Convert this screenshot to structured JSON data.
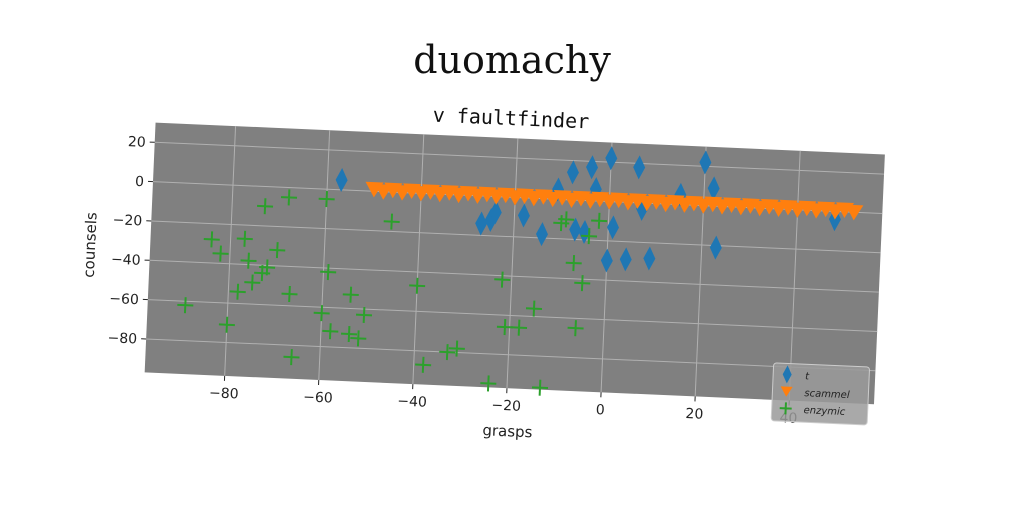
{
  "page": {
    "title": "duomachy"
  },
  "chart_data": {
    "type": "scatter",
    "title": "v faultfinder",
    "xlabel": "grasps",
    "ylabel": "counsels",
    "xlim": [
      -97,
      58
    ],
    "ylim": [
      -97,
      30
    ],
    "xticks": [
      -80,
      -60,
      -40,
      -20,
      0,
      20,
      40
    ],
    "yticks": [
      20,
      0,
      -20,
      -40,
      -60,
      -80
    ],
    "grid": true,
    "legend_position": "lower-right",
    "background_color": "#808080",
    "series": [
      {
        "name": "t",
        "color": "#1f77b4",
        "marker": "diamond",
        "points": [
          [
            -57,
            5
          ],
          [
            -27,
            -14
          ],
          [
            -25,
            -12
          ],
          [
            -24,
            -8
          ],
          [
            -18,
            -9
          ],
          [
            -14,
            -18
          ],
          [
            -11,
            5
          ],
          [
            -8,
            14
          ],
          [
            -7,
            -15
          ],
          [
            -5,
            -16
          ],
          [
            -4,
            17
          ],
          [
            -3,
            6
          ],
          [
            0,
            22
          ],
          [
            0,
            -30
          ],
          [
            1,
            -13
          ],
          [
            4,
            -29
          ],
          [
            6,
            18
          ],
          [
            7,
            -3
          ],
          [
            9,
            -28
          ],
          [
            15,
            5
          ],
          [
            20,
            22
          ],
          [
            22,
            9
          ],
          [
            23,
            -21
          ],
          [
            48,
            -4
          ]
        ]
      },
      {
        "name": "scammel",
        "color": "#ff7f0e",
        "marker": "triangle-down",
        "points": [
          [
            -50,
            1
          ],
          [
            -48,
            0
          ],
          [
            -46,
            1
          ],
          [
            -44,
            0
          ],
          [
            -42,
            1
          ],
          [
            -40,
            0
          ],
          [
            -38,
            1
          ],
          [
            -36,
            0
          ],
          [
            -34,
            1
          ],
          [
            -32,
            0
          ],
          [
            -30,
            1
          ],
          [
            -28,
            0
          ],
          [
            -26,
            1
          ],
          [
            -24,
            0
          ],
          [
            -22,
            1
          ],
          [
            -20,
            0
          ],
          [
            -18,
            1
          ],
          [
            -16,
            0
          ],
          [
            -14,
            1
          ],
          [
            -12,
            0
          ],
          [
            -10,
            1
          ],
          [
            -8,
            0
          ],
          [
            -6,
            1
          ],
          [
            -4,
            0
          ],
          [
            -2,
            1
          ],
          [
            0,
            0
          ],
          [
            2,
            1
          ],
          [
            4,
            0
          ],
          [
            6,
            1
          ],
          [
            8,
            0
          ],
          [
            10,
            1
          ],
          [
            12,
            0
          ],
          [
            14,
            1
          ],
          [
            16,
            0
          ],
          [
            18,
            1
          ],
          [
            20,
            0
          ],
          [
            22,
            1
          ],
          [
            24,
            0
          ],
          [
            26,
            1
          ],
          [
            28,
            0
          ],
          [
            30,
            1
          ],
          [
            32,
            0
          ],
          [
            34,
            1
          ],
          [
            36,
            0
          ],
          [
            38,
            1
          ],
          [
            40,
            0
          ],
          [
            42,
            1
          ],
          [
            44,
            0
          ],
          [
            46,
            1
          ],
          [
            48,
            0
          ],
          [
            50,
            1
          ],
          [
            52,
            0
          ]
        ]
      },
      {
        "name": "enzymic",
        "color": "#2ca02c",
        "marker": "plus",
        "points": [
          [
            -73,
            -10
          ],
          [
            -68,
            -5
          ],
          [
            -60,
            -5
          ],
          [
            -46,
            -15
          ],
          [
            -84,
            -28
          ],
          [
            -82,
            -35
          ],
          [
            -77,
            -27
          ],
          [
            -76,
            -38
          ],
          [
            -70,
            -32
          ],
          [
            -75,
            -49
          ],
          [
            -73,
            -44
          ],
          [
            -72,
            -41
          ],
          [
            -59,
            -42
          ],
          [
            -78,
            -54
          ],
          [
            -67,
            -54
          ],
          [
            -60,
            -63
          ],
          [
            -54,
            -53
          ],
          [
            -51,
            -63
          ],
          [
            -89,
            -62
          ],
          [
            -80,
            -71
          ],
          [
            -58,
            -72
          ],
          [
            -54,
            -73
          ],
          [
            -52,
            -75
          ],
          [
            -66,
            -86
          ],
          [
            -40,
            -47
          ],
          [
            -33,
            -80
          ],
          [
            -31,
            -78
          ],
          [
            -38,
            -87
          ],
          [
            -24,
            -95
          ],
          [
            -22,
            -42
          ],
          [
            -21,
            -66
          ],
          [
            -18,
            -66
          ],
          [
            -15,
            -56
          ],
          [
            -13,
            -96
          ],
          [
            -10,
            -12
          ],
          [
            -9,
            -10
          ],
          [
            -7,
            -32
          ],
          [
            -5,
            -42
          ],
          [
            -4,
            -18
          ],
          [
            -6,
            -65
          ],
          [
            -2,
            -10
          ]
        ]
      }
    ]
  }
}
